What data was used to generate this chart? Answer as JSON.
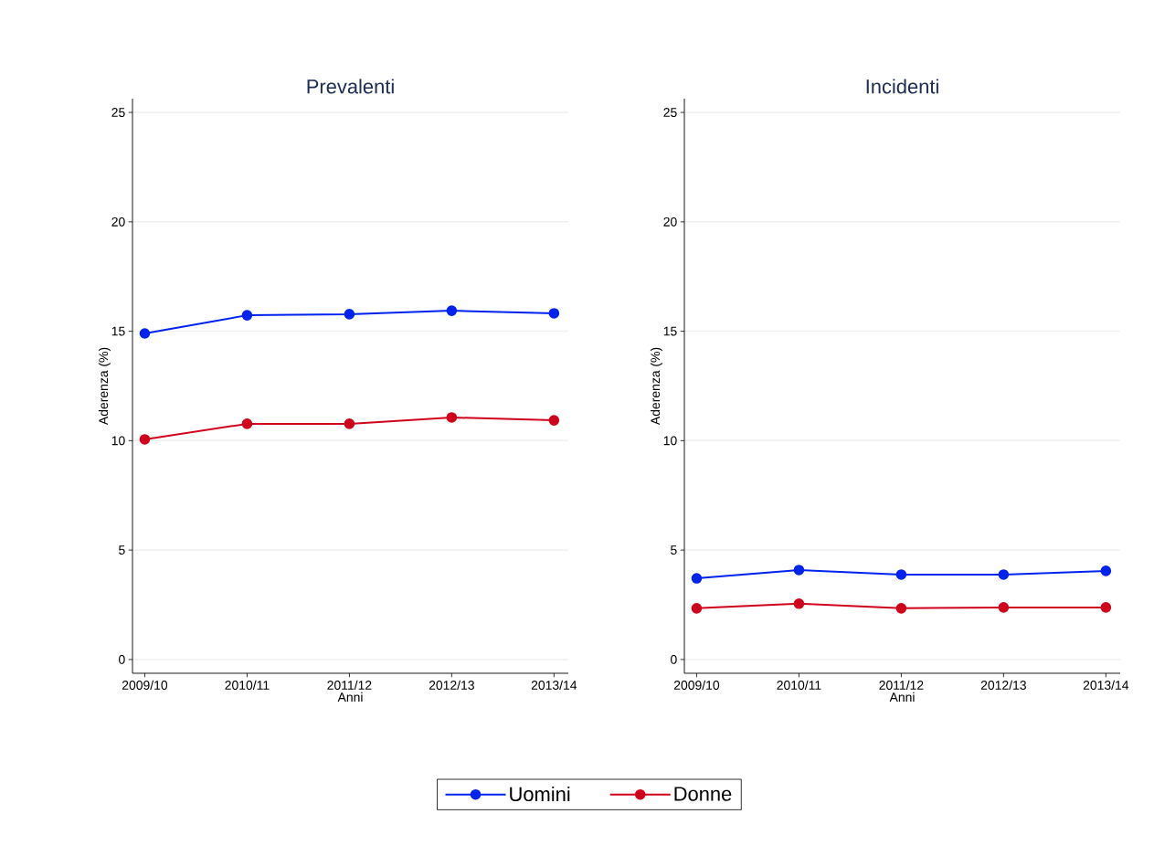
{
  "chart_data": [
    {
      "type": "line",
      "title": "Prevalenti",
      "xlabel": "Anni",
      "ylabel": "Aderenza (%)",
      "categories": [
        "2009/10",
        "2010/11",
        "2011/12",
        "2012/13",
        "2013/14"
      ],
      "series": [
        {
          "name": "Uomini",
          "color": "#0022ee",
          "values": [
            14.9,
            15.73,
            15.78,
            15.94,
            15.82
          ]
        },
        {
          "name": "Donne",
          "color": "#d0021b",
          "values": [
            10.06,
            10.77,
            10.77,
            11.06,
            10.93
          ]
        }
      ],
      "ylim": [
        -0.63,
        25.63
      ],
      "yticks": [
        0,
        5,
        10,
        15,
        20,
        25
      ],
      "grid": "y",
      "marker": "circle",
      "line_style": "solid",
      "legend": "bottom"
    },
    {
      "type": "line",
      "title": "Incidenti",
      "xlabel": "Anni",
      "ylabel": "Aderenza (%)",
      "categories": [
        "2009/10",
        "2010/11",
        "2011/12",
        "2012/13",
        "2013/14"
      ],
      "series": [
        {
          "color": "#0022ee",
          "values": [
            3.71,
            4.09,
            3.88,
            3.88,
            4.05
          ]
        },
        {
          "color": "#d0021b",
          "values": [
            2.34,
            2.55,
            2.34,
            2.38,
            2.38
          ]
        }
      ],
      "ylim": [
        -0.63,
        25.63
      ],
      "yticks": [
        0,
        5,
        10,
        15,
        20,
        25
      ],
      "grid": "y",
      "marker": "circle",
      "line_style": "solid"
    }
  ]
}
